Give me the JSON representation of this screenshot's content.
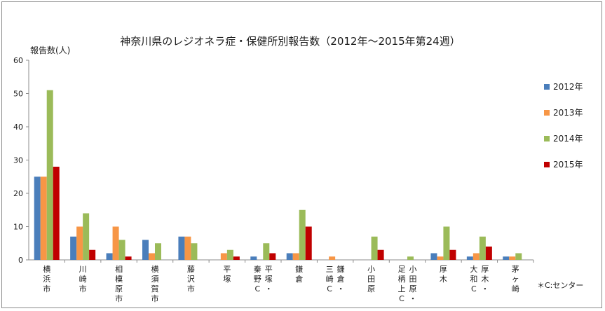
{
  "chart_data": {
    "type": "bar",
    "title": "神奈川県のレジオネラ症・保健所別報告数（2012年～2015年第24週）",
    "ylabel": "報告数(人)",
    "xlabel": "",
    "ylim": [
      0,
      60
    ],
    "yticks": [
      0,
      10,
      20,
      30,
      40,
      50,
      60
    ],
    "grid": false,
    "legend_position": "right",
    "categories": [
      {
        "id": "yokohama",
        "name": "横浜市",
        "columns": [
          "横浜市"
        ]
      },
      {
        "id": "kawasaki",
        "name": "川崎市",
        "columns": [
          "川崎市"
        ]
      },
      {
        "id": "sagamihara",
        "name": "相模原市",
        "columns": [
          "相模原市"
        ]
      },
      {
        "id": "yokosuka",
        "name": "横須賀市",
        "columns": [
          "横須賀市"
        ]
      },
      {
        "id": "fujisawa",
        "name": "藤沢市",
        "columns": [
          "藤沢市"
        ]
      },
      {
        "id": "hiratsuka",
        "name": "平塚",
        "columns": [
          "平塚"
        ]
      },
      {
        "id": "hiratsuka-hadano",
        "name": "平塚・秦野C",
        "columns": [
          "平塚・",
          "秦野C"
        ]
      },
      {
        "id": "kamakura",
        "name": "鎌倉",
        "columns": [
          "鎌倉"
        ]
      },
      {
        "id": "kamakura-misaki",
        "name": "鎌倉・三崎C",
        "columns": [
          "鎌倉・",
          "三崎C"
        ]
      },
      {
        "id": "odawara",
        "name": "小田原",
        "columns": [
          "小田原"
        ]
      },
      {
        "id": "odawara-ashigarakami",
        "name": "小田原・足柄上C",
        "columns": [
          "小田原・",
          "足柄上C"
        ]
      },
      {
        "id": "atsugi",
        "name": "厚木",
        "columns": [
          "厚木"
        ]
      },
      {
        "id": "atsugi-yamato",
        "name": "厚木・大和C",
        "columns": [
          "厚木・",
          "大和C"
        ]
      },
      {
        "id": "chigasaki",
        "name": "茅ヶ崎",
        "columns": [
          "茅ヶ崎"
        ]
      }
    ],
    "series": [
      {
        "name": "2012年",
        "color": "#4a7ebb",
        "values": [
          25,
          7,
          2,
          6,
          7,
          0,
          1,
          2,
          0,
          0,
          0,
          2,
          1,
          1
        ]
      },
      {
        "name": "2013年",
        "color": "#f79646",
        "values": [
          25,
          10,
          10,
          2,
          7,
          2,
          0,
          2,
          1,
          0,
          0,
          1,
          2,
          1
        ]
      },
      {
        "name": "2014年",
        "color": "#9bbb59",
        "values": [
          51,
          14,
          6,
          5,
          5,
          3,
          5,
          15,
          0,
          7,
          1,
          10,
          7,
          2
        ]
      },
      {
        "name": "2015年",
        "color": "#c00000",
        "values": [
          28,
          3,
          1,
          0,
          0,
          1,
          2,
          10,
          0,
          3,
          0,
          3,
          4,
          0
        ]
      }
    ],
    "note": "＊C:センター"
  }
}
